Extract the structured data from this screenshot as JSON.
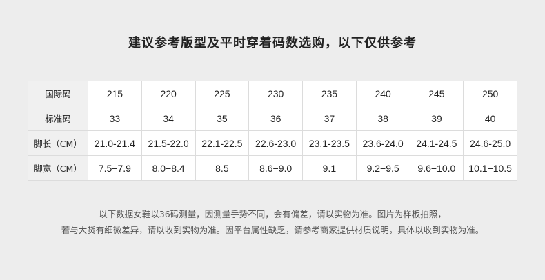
{
  "title": "建议参考版型及平时穿着码数选购，以下仅供参考",
  "table": {
    "rows": [
      {
        "label": "国际码",
        "values": [
          "215",
          "220",
          "225",
          "230",
          "235",
          "240",
          "245",
          "250"
        ]
      },
      {
        "label": "标准码",
        "values": [
          "33",
          "34",
          "35",
          "36",
          "37",
          "38",
          "39",
          "40"
        ]
      },
      {
        "label": "脚长（CM）",
        "values": [
          "21.0-21.4",
          "21.5-22.0",
          "22.1-22.5",
          "22.6-23.0",
          "23.1-23.5",
          "23.6-24.0",
          "24.1-24.5",
          "24.6-25.0"
        ]
      },
      {
        "label": "脚宽（CM）",
        "values": [
          "7.5−7.9",
          "8.0−8.4",
          "8.5",
          "8.6−9.0",
          "9.1",
          "9.2−9.5",
          "9.6−10.0",
          "10.1−10.5"
        ]
      }
    ]
  },
  "notes": [
    "以下数据女鞋以36码测量，因测量手势不同，会有偏差，请以实物为准。图片为样板拍照，",
    "若与大货有细微差异，请以收到实物为准。因平台属性缺乏，请参考商家提供材质说明，具体以收到实物为准。"
  ]
}
